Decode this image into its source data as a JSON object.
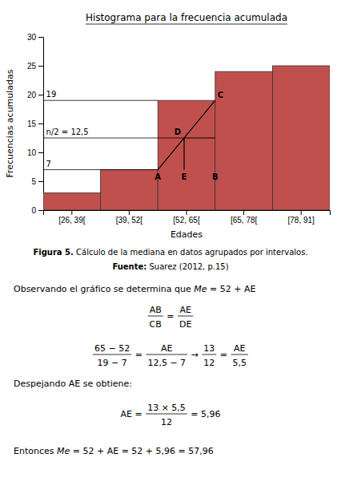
{
  "chart_data": {
    "type": "bar",
    "title": "Histograma para la frecuencia acumulada",
    "xlabel": "Edades",
    "ylabel": "Frecuencias acumuladas",
    "categories": [
      "[26, 39[",
      "[39, 52[",
      "[52, 65[",
      "[65, 78[",
      "[78, 91]"
    ],
    "values": [
      3,
      7,
      19,
      24,
      25
    ],
    "color": "#c0504d",
    "ylim": [
      0,
      30
    ],
    "yticks": [
      0,
      5,
      10,
      15,
      20,
      25,
      30
    ],
    "grid": false,
    "reference_lines": [
      {
        "y": 19,
        "label": "19"
      },
      {
        "y": 7,
        "label": "7"
      },
      {
        "y": 12.5,
        "label": "n/2 = 12,5"
      }
    ],
    "construction": {
      "class": "[52, 65[",
      "fraction": 0.4583333333333333,
      "point_labels": [
        "A",
        "B",
        "C",
        "D",
        "E"
      ]
    },
    "annotations": [
      {
        "runs": [
          {
            "bold": "Figura 5."
          },
          {
            "text": " Cálculo de la mediana en datos agrupados por intervalos."
          }
        ]
      },
      {
        "runs": [
          {
            "bold": "Fuente:"
          },
          {
            "text": " Suarez (2012, p.15)"
          }
        ]
      },
      {
        "runs": [
          {
            "text": "Observando el gráfico se determina que "
          },
          {
            "italic": "Me"
          },
          {
            "text": " = 52 + AE"
          }
        ]
      },
      {
        "runs": [
          {
            "num": "AB",
            "den": "CB"
          },
          {
            "text": " = "
          },
          {
            "num": "AE",
            "den": "DE"
          }
        ]
      },
      {
        "runs": [
          {
            "num": "65 − 52",
            "den": "19 − 7"
          },
          {
            "text": " = "
          },
          {
            "num": "AE",
            "den": "12,5 − 7"
          },
          {
            "text": " → "
          },
          {
            "num": "13",
            "den": "12"
          },
          {
            "text": " = "
          },
          {
            "num": "AE",
            "den": "5,5"
          }
        ]
      },
      {
        "runs": [
          {
            "text": "Despejando AE se obtiene:"
          }
        ]
      },
      {
        "runs": [
          {
            "text": "AE = "
          },
          {
            "num": "13 × 5,5",
            "den": "12"
          },
          {
            "text": " = 5,96"
          }
        ]
      },
      {
        "runs": [
          {
            "text": "Entonces "
          },
          {
            "italic": "Me"
          },
          {
            "text": " = 52 + AE = 52 + 5,96 = 57,96"
          }
        ]
      }
    ]
  }
}
